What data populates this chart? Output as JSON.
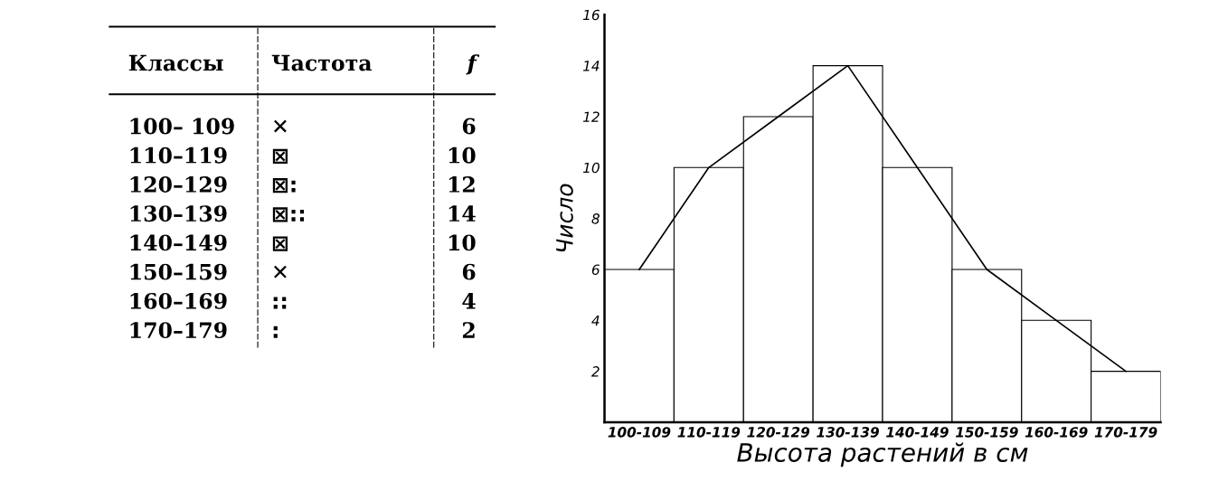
{
  "chart_data": [
    {
      "type": "other",
      "annotations": [
        "Классы",
        "Частота",
        "f",
        "100– 109",
        "✕",
        "6",
        "110–119",
        "⊠",
        "10",
        "120–129",
        "⊠:",
        "12",
        "130–139",
        "⊠::",
        "14",
        "140–149",
        "⊠",
        "10",
        "150–159",
        "✕",
        "6",
        "160–169",
        "::",
        "4",
        "170–179",
        ":",
        "2"
      ]
    },
    {
      "type": "bar",
      "xlabel": "Высота растений в см",
      "ylabel": "Число",
      "categories": [
        "100-109",
        "110-119",
        "120-129",
        "130-139",
        "140-149",
        "150-159",
        "160-169",
        "170-179"
      ],
      "series": [
        {
          "type": "bar",
          "color": "#ffffff",
          "values": [
            6,
            10,
            12,
            14,
            10,
            6,
            4,
            2
          ]
        },
        {
          "type": "line",
          "color": "#000000",
          "values": [
            6,
            10,
            12,
            14,
            10,
            6,
            4,
            2
          ]
        }
      ],
      "ylim": [
        0,
        16
      ],
      "yticks": [
        2,
        4,
        6,
        8,
        10,
        12,
        14,
        16
      ],
      "grid": false,
      "legend": false
    }
  ]
}
